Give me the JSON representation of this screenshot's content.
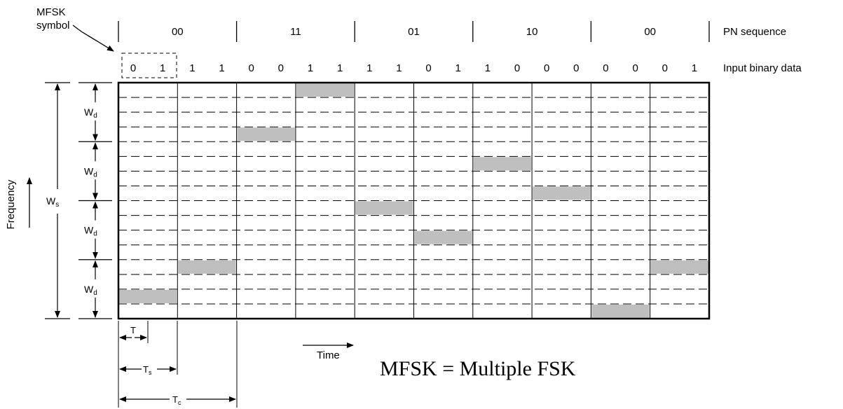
{
  "labels": {
    "mfsk_symbol_line1": "MFSK",
    "mfsk_symbol_line2": "symbol",
    "pn_sequence": "PN sequence",
    "input_binary_data": "Input binary data",
    "frequency": "Frequency",
    "time": "Time",
    "formula": "MFSK = Multiple FSK",
    "ws_main": "W",
    "ws_sub": "s",
    "wd_main": "W",
    "wd_sub": "d",
    "t_main": "T",
    "ts_main": "T",
    "ts_sub": "s",
    "tc_main": "T",
    "tc_sub": "c"
  },
  "pn_sequence": [
    "00",
    "11",
    "01",
    "10",
    "00"
  ],
  "input_bits": [
    "0",
    "1",
    "1",
    "1",
    "0",
    "0",
    "1",
    "1",
    "1",
    "1",
    "0",
    "1",
    "1",
    "0",
    "0",
    "0",
    "0",
    "0",
    "0",
    "1"
  ],
  "grid": {
    "symbol_columns": 10,
    "frequency_rows": 16,
    "rows_per_band": 4,
    "chip_every_symbols": 2
  },
  "occupied_cells": [
    {
      "symbol": 1,
      "row": 15
    },
    {
      "symbol": 2,
      "row": 13
    },
    {
      "symbol": 3,
      "row": 4
    },
    {
      "symbol": 4,
      "row": 1
    },
    {
      "symbol": 5,
      "row": 9
    },
    {
      "symbol": 6,
      "row": 11
    },
    {
      "symbol": 7,
      "row": 6
    },
    {
      "symbol": 8,
      "row": 8
    },
    {
      "symbol": 9,
      "row": 16
    },
    {
      "symbol": 10,
      "row": 13
    }
  ],
  "colors": {
    "line": "#000000",
    "fill": "#bfbfbf",
    "background": "#ffffff"
  }
}
